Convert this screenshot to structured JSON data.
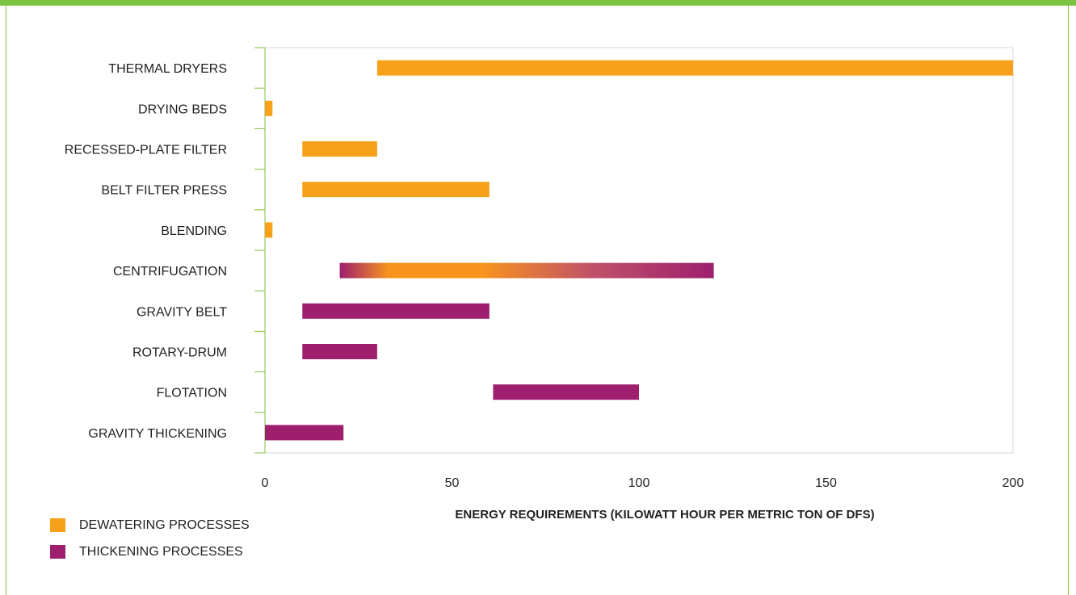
{
  "chart_data": {
    "type": "bar",
    "xlabel": "ENERGY REQUIREMENTS (KILOWATT HOUR PER METRIC TON OF DFS)",
    "xlim": [
      0,
      200
    ],
    "xticks": [
      0,
      50,
      100,
      150,
      200
    ],
    "categories": [
      "THERMAL DRYERS",
      "DRYING BEDS",
      "RECESSED-PLATE FILTER",
      "BELT FILTER PRESS",
      "BLENDING",
      "CENTRIFUGATION",
      "GRAVITY BELT",
      "ROTARY-DRUM",
      "FLOTATION",
      "GRAVITY THICKENING"
    ],
    "series": [
      {
        "name": "DEWATERING PROCESSES",
        "color": "#f7a11a",
        "ranges": [
          [
            30,
            200
          ],
          [
            0,
            2
          ],
          [
            10,
            30
          ],
          [
            10,
            60
          ],
          [
            0,
            2
          ],
          [
            20,
            120
          ],
          null,
          null,
          null,
          null
        ]
      },
      {
        "name": "THICKENING PROCESSES",
        "color": "#9e1f6e",
        "ranges": [
          null,
          null,
          null,
          null,
          null,
          [
            20,
            120
          ],
          [
            10,
            60
          ],
          [
            10,
            30
          ],
          [
            61,
            100
          ],
          [
            0,
            21
          ]
        ]
      }
    ],
    "legend_position": "bottom-left",
    "grid": false
  },
  "legend": {
    "dewatering": "DEWATERING PROCESSES",
    "thickening": "THICKENING PROCESSES"
  },
  "colors": {
    "accent": "#7dc242",
    "dewatering": "#f7a11a",
    "thickening": "#9e1f6e"
  }
}
